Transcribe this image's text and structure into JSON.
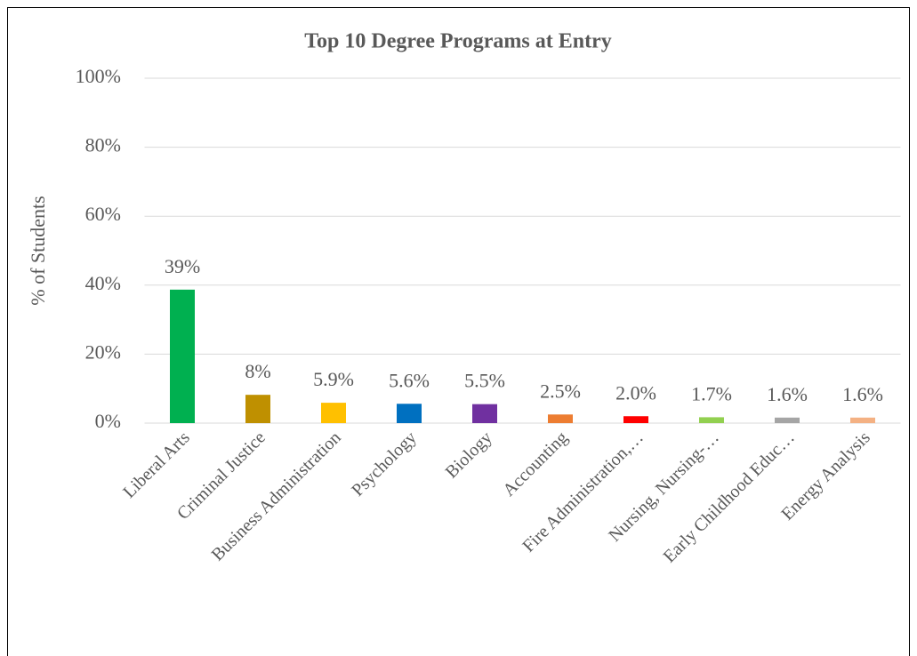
{
  "chart_data": {
    "type": "bar",
    "title": "Top 10 Degree Programs at Entry",
    "y_label": "% of Students",
    "categories": [
      "Liberal Arts",
      "Criminal Justice",
      "Business Administration",
      "Psychology",
      "Biology",
      "Accounting",
      "Fire Administration,…",
      "Nursing, Nursing-…",
      "Early Childhood Educ…",
      "Energy Analysis"
    ],
    "values": [
      38.7,
      8.2,
      5.9,
      5.6,
      5.5,
      2.5,
      2.0,
      1.7,
      1.6,
      1.6
    ],
    "value_labels": [
      "39%",
      "8%",
      "5.9%",
      "5.6%",
      "5.5%",
      "2.5%",
      "2.0%",
      "1.7%",
      "1.6%",
      "1.6%"
    ],
    "colors": [
      "#00b050",
      "#bf9000",
      "#ffc000",
      "#0070c0",
      "#7030a0",
      "#ed7d31",
      "#ff0000",
      "#92d050",
      "#a5a5a5",
      "#f4b183"
    ],
    "ylim": [
      0,
      100
    ],
    "yticks": [
      {
        "value": 0,
        "label": "0%"
      },
      {
        "value": 20,
        "label": "20%"
      },
      {
        "value": 40,
        "label": "40%"
      },
      {
        "value": 60,
        "label": "60%"
      },
      {
        "value": 80,
        "label": "80%"
      },
      {
        "value": 100,
        "label": "100%"
      }
    ],
    "grid": true
  }
}
